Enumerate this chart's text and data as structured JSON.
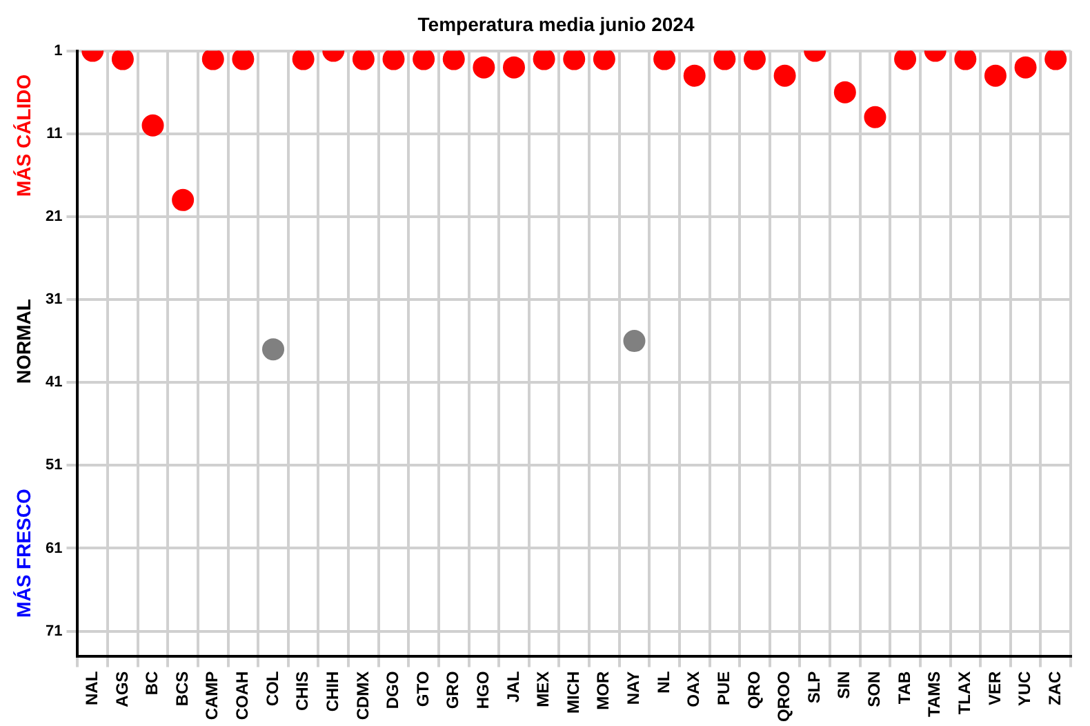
{
  "chart_data": {
    "type": "scatter",
    "title": "Temperatura media junio 2024",
    "categories": [
      "NAL",
      "AGS",
      "BC",
      "BCS",
      "CAMP",
      "COAH",
      "COL",
      "CHIS",
      "CHIH",
      "CDMX",
      "DGO",
      "GTO",
      "GRO",
      "HGO",
      "JAL",
      "MEX",
      "MICH",
      "MOR",
      "NAY",
      "NL",
      "OAX",
      "PUE",
      "QRO",
      "QROO",
      "SLP",
      "SIN",
      "SON",
      "TAB",
      "TAMS",
      "TLAX",
      "VER",
      "YUC",
      "ZAC"
    ],
    "values": [
      1,
      2,
      10,
      19,
      2,
      2,
      37,
      2,
      1,
      2,
      2,
      2,
      2,
      3,
      3,
      2,
      2,
      2,
      36,
      2,
      4,
      2,
      2,
      4,
      1,
      6,
      9,
      2,
      1,
      2,
      4,
      3,
      2
    ],
    "colors": [
      "#ff0000",
      "#ff0000",
      "#ff0000",
      "#ff0000",
      "#ff0000",
      "#ff0000",
      "#808080",
      "#ff0000",
      "#ff0000",
      "#ff0000",
      "#ff0000",
      "#ff0000",
      "#ff0000",
      "#ff0000",
      "#ff0000",
      "#ff0000",
      "#ff0000",
      "#ff0000",
      "#808080",
      "#ff0000",
      "#ff0000",
      "#ff0000",
      "#ff0000",
      "#ff0000",
      "#ff0000",
      "#ff0000",
      "#ff0000",
      "#ff0000",
      "#ff0000",
      "#ff0000",
      "#ff0000",
      "#ff0000",
      "#ff0000"
    ],
    "ylim": [
      74,
      1
    ],
    "yticks": [
      1,
      11,
      21,
      31,
      41,
      51,
      61,
      71
    ],
    "annotations": [
      "MÁS CÁLIDO",
      "NORMAL",
      "MÁS FRESCO"
    ],
    "grid": true,
    "legend": false,
    "marker": "circle"
  }
}
